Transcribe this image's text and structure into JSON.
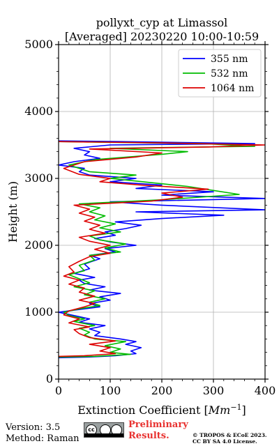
{
  "chart_data": {
    "type": "line",
    "title": "pollyxt_cyp at Limassol",
    "subtitle": "[Averaged] 20230220 10:00-10:59",
    "xlabel": "Extinction Coefficient [",
    "xlabel_unit": "Mm",
    "xlabel_exp": "−1",
    "xlabel_end": "]",
    "ylabel": "Height (m)",
    "xlim": [
      0,
      400
    ],
    "ylim": [
      0,
      5000
    ],
    "xticks": [
      0,
      100,
      200,
      300,
      400
    ],
    "xtick_labels": [
      "0",
      "100",
      "200",
      "300",
      "400"
    ],
    "yticks": [
      0,
      1000,
      2000,
      3000,
      4000,
      5000
    ],
    "ytick_labels": [
      "0",
      "1000",
      "2000",
      "3000",
      "4000",
      "5000"
    ],
    "grid": true,
    "legend_position": "top-right",
    "series": [
      {
        "name": "355 nm",
        "color": "#0000ff",
        "points": [
          [
            0,
            320
          ],
          [
            60,
            330
          ],
          [
            110,
            350
          ],
          [
            150,
            380
          ],
          [
            140,
            420
          ],
          [
            160,
            470
          ],
          [
            130,
            520
          ],
          [
            150,
            560
          ],
          [
            120,
            600
          ],
          [
            70,
            650
          ],
          [
            80,
            700
          ],
          [
            60,
            750
          ],
          [
            90,
            800
          ],
          [
            40,
            850
          ],
          [
            60,
            900
          ],
          [
            30,
            950
          ],
          [
            0,
            1000
          ],
          [
            30,
            1030
          ],
          [
            80,
            1080
          ],
          [
            60,
            1130
          ],
          [
            100,
            1180
          ],
          [
            80,
            1230
          ],
          [
            120,
            1280
          ],
          [
            60,
            1330
          ],
          [
            90,
            1380
          ],
          [
            50,
            1430
          ],
          [
            40,
            1480
          ],
          [
            70,
            1520
          ],
          [
            30,
            1580
          ],
          [
            60,
            1650
          ],
          [
            50,
            1720
          ],
          [
            80,
            1800
          ],
          [
            60,
            1850
          ],
          [
            110,
            1900
          ],
          [
            90,
            1950
          ],
          [
            150,
            2000
          ],
          [
            100,
            2050
          ],
          [
            70,
            2100
          ],
          [
            110,
            2150
          ],
          [
            90,
            2200
          ],
          [
            130,
            2250
          ],
          [
            160,
            2300
          ],
          [
            110,
            2350
          ],
          [
            200,
            2400
          ],
          [
            320,
            2450
          ],
          [
            150,
            2500
          ],
          [
            400,
            2530
          ],
          [
            200,
            2600
          ],
          [
            100,
            2650
          ],
          [
            400,
            2700
          ],
          [
            200,
            2750
          ],
          [
            300,
            2800
          ],
          [
            150,
            2850
          ],
          [
            200,
            2900
          ],
          [
            100,
            2950
          ],
          [
            150,
            3000
          ],
          [
            60,
            3050
          ],
          [
            40,
            3100
          ],
          [
            50,
            3150
          ],
          [
            0,
            3200
          ],
          [
            30,
            3250
          ],
          [
            80,
            3300
          ],
          [
            50,
            3350
          ],
          [
            60,
            3400
          ],
          [
            30,
            3450
          ],
          [
            100,
            3500
          ],
          [
            380,
            3520
          ],
          [
            120,
            3550
          ],
          [
            0,
            3560
          ]
        ]
      },
      {
        "name": "532 nm",
        "color": "#00bb00",
        "points": [
          [
            0,
            330
          ],
          [
            70,
            340
          ],
          [
            140,
            370
          ],
          [
            100,
            400
          ],
          [
            120,
            450
          ],
          [
            90,
            500
          ],
          [
            130,
            560
          ],
          [
            70,
            600
          ],
          [
            50,
            660
          ],
          [
            60,
            700
          ],
          [
            40,
            760
          ],
          [
            70,
            800
          ],
          [
            30,
            860
          ],
          [
            50,
            900
          ],
          [
            20,
            950
          ],
          [
            10,
            1000
          ],
          [
            40,
            1050
          ],
          [
            80,
            1100
          ],
          [
            60,
            1150
          ],
          [
            90,
            1200
          ],
          [
            50,
            1260
          ],
          [
            70,
            1320
          ],
          [
            30,
            1380
          ],
          [
            60,
            1440
          ],
          [
            40,
            1500
          ],
          [
            20,
            1560
          ],
          [
            50,
            1620
          ],
          [
            40,
            1700
          ],
          [
            70,
            1780
          ],
          [
            60,
            1850
          ],
          [
            120,
            1900
          ],
          [
            90,
            1960
          ],
          [
            130,
            2020
          ],
          [
            80,
            2080
          ],
          [
            60,
            2140
          ],
          [
            120,
            2200
          ],
          [
            80,
            2260
          ],
          [
            110,
            2320
          ],
          [
            70,
            2380
          ],
          [
            90,
            2440
          ],
          [
            60,
            2500
          ],
          [
            80,
            2560
          ],
          [
            40,
            2620
          ],
          [
            200,
            2680
          ],
          [
            350,
            2760
          ],
          [
            300,
            2820
          ],
          [
            250,
            2880
          ],
          [
            150,
            2960
          ],
          [
            100,
            3000
          ],
          [
            150,
            3050
          ],
          [
            60,
            3100
          ],
          [
            20,
            3200
          ],
          [
            70,
            3280
          ],
          [
            200,
            3360
          ],
          [
            250,
            3400
          ],
          [
            100,
            3450
          ],
          [
            380,
            3480
          ],
          [
            280,
            3520
          ],
          [
            0,
            3550
          ]
        ]
      },
      {
        "name": "1064 nm",
        "color": "#dd0000",
        "points": [
          [
            0,
            340
          ],
          [
            50,
            350
          ],
          [
            110,
            380
          ],
          [
            80,
            420
          ],
          [
            100,
            470
          ],
          [
            60,
            520
          ],
          [
            110,
            570
          ],
          [
            60,
            620
          ],
          [
            40,
            680
          ],
          [
            30,
            740
          ],
          [
            60,
            780
          ],
          [
            20,
            840
          ],
          [
            40,
            900
          ],
          [
            10,
            960
          ],
          [
            20,
            1020
          ],
          [
            50,
            1080
          ],
          [
            70,
            1130
          ],
          [
            40,
            1180
          ],
          [
            70,
            1240
          ],
          [
            40,
            1300
          ],
          [
            50,
            1360
          ],
          [
            20,
            1420
          ],
          [
            40,
            1480
          ],
          [
            10,
            1540
          ],
          [
            30,
            1600
          ],
          [
            20,
            1680
          ],
          [
            40,
            1760
          ],
          [
            60,
            1830
          ],
          [
            100,
            1880
          ],
          [
            70,
            1940
          ],
          [
            100,
            2000
          ],
          [
            60,
            2060
          ],
          [
            40,
            2120
          ],
          [
            90,
            2180
          ],
          [
            60,
            2240
          ],
          [
            80,
            2300
          ],
          [
            50,
            2360
          ],
          [
            70,
            2420
          ],
          [
            40,
            2480
          ],
          [
            60,
            2540
          ],
          [
            30,
            2600
          ],
          [
            180,
            2660
          ],
          [
            240,
            2720
          ],
          [
            200,
            2780
          ],
          [
            290,
            2840
          ],
          [
            160,
            2900
          ],
          [
            80,
            2950
          ],
          [
            100,
            3000
          ],
          [
            40,
            3060
          ],
          [
            10,
            3150
          ],
          [
            50,
            3250
          ],
          [
            150,
            3320
          ],
          [
            200,
            3380
          ],
          [
            60,
            3440
          ],
          [
            290,
            3470
          ],
          [
            400,
            3500
          ],
          [
            200,
            3530
          ],
          [
            0,
            3550
          ]
        ]
      }
    ]
  },
  "footer": {
    "version": "Version: 3.5",
    "method": "Method: Raman",
    "cc_label": "cc",
    "prelim_line1": "Preliminary",
    "prelim_line2": "Results.",
    "copyright_line1": "© TROPOS & ECoE 2023.",
    "copyright_line2": "CC BY SA 4.0 License."
  }
}
